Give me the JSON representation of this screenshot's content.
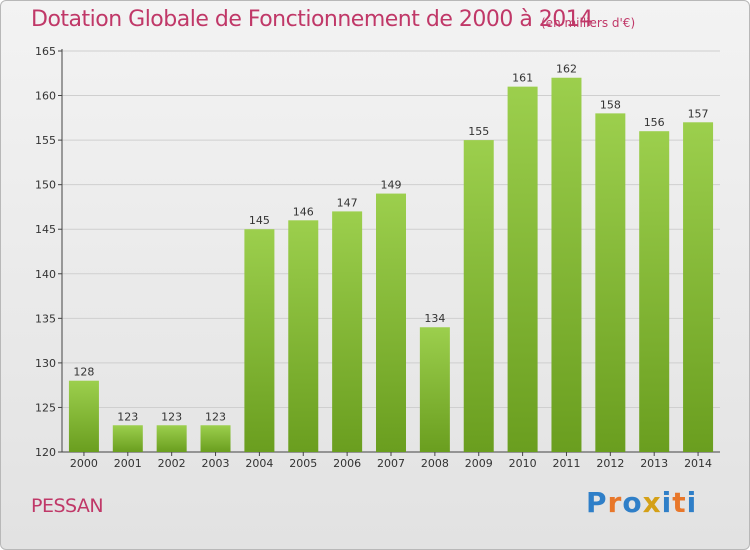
{
  "chart_data": {
    "type": "bar",
    "title": "Dotation Globale de Fonctionnement de 2000 à 2014",
    "subtitle": "(en milliers d'€)",
    "categories": [
      "2000",
      "2001",
      "2002",
      "2003",
      "2004",
      "2005",
      "2006",
      "2007",
      "2008",
      "2009",
      "2010",
      "2011",
      "2012",
      "2013",
      "2014"
    ],
    "values": [
      128,
      123,
      123,
      123,
      145,
      146,
      147,
      149,
      134,
      155,
      161,
      162,
      158,
      156,
      157
    ],
    "ylim": [
      120,
      165
    ],
    "yticks": [
      120,
      125,
      130,
      135,
      140,
      145,
      150,
      155,
      160,
      165
    ],
    "grid": true,
    "bar_color_top": "#9ccf4d",
    "bar_color_bottom": "#6a9e1f"
  },
  "footer": {
    "commune": "PESSAN",
    "logo_letters": [
      "P",
      "r",
      "o",
      "x",
      "i",
      "t",
      "i"
    ],
    "logo_colors": [
      "#2f7fc8",
      "#e8772a",
      "#2f7fc8",
      "#d4a017",
      "#2f7fc8",
      "#e8772a",
      "#2f7fc8"
    ]
  },
  "colors": {
    "title": "#c03868",
    "axis": "#444444",
    "grid": "#cfcfcf"
  }
}
